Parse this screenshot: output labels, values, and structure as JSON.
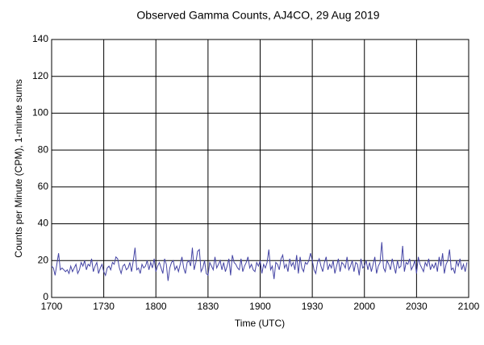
{
  "chart_data": {
    "type": "line",
    "title": "Observed Gamma Counts, AJ4CO, 29 Aug 2019",
    "xlabel": "Time (UTC)",
    "ylabel": "Counts per Minute (CPM), 1-minute sums",
    "color": "#4444a4",
    "grid": true,
    "xlim": [
      1020,
      1260
    ],
    "ylim": [
      0,
      140
    ],
    "xticks": [
      {
        "value": 1020,
        "label": "1700"
      },
      {
        "value": 1050,
        "label": "1730"
      },
      {
        "value": 1080,
        "label": "1800"
      },
      {
        "value": 1110,
        "label": "1830"
      },
      {
        "value": 1140,
        "label": "1900"
      },
      {
        "value": 1170,
        "label": "1930"
      },
      {
        "value": 1200,
        "label": "2000"
      },
      {
        "value": 1230,
        "label": "2030"
      },
      {
        "value": 1260,
        "label": "2100"
      }
    ],
    "yticks": [
      0,
      20,
      40,
      60,
      80,
      100,
      120,
      140
    ],
    "x": [
      1020,
      1021,
      1022,
      1023,
      1024,
      1025,
      1026,
      1027,
      1028,
      1029,
      1030,
      1031,
      1032,
      1033,
      1034,
      1035,
      1036,
      1037,
      1038,
      1039,
      1040,
      1041,
      1042,
      1043,
      1044,
      1045,
      1046,
      1047,
      1048,
      1049,
      1050,
      1051,
      1052,
      1053,
      1054,
      1055,
      1056,
      1057,
      1058,
      1059,
      1060,
      1061,
      1062,
      1063,
      1064,
      1065,
      1066,
      1067,
      1068,
      1069,
      1070,
      1071,
      1072,
      1073,
      1074,
      1075,
      1076,
      1077,
      1078,
      1079,
      1080,
      1081,
      1082,
      1083,
      1084,
      1085,
      1086,
      1087,
      1088,
      1089,
      1090,
      1091,
      1092,
      1093,
      1094,
      1095,
      1096,
      1097,
      1098,
      1099,
      1100,
      1101,
      1102,
      1103,
      1104,
      1105,
      1106,
      1107,
      1108,
      1109,
      1110,
      1111,
      1112,
      1113,
      1114,
      1115,
      1116,
      1117,
      1118,
      1119,
      1120,
      1121,
      1122,
      1123,
      1124,
      1125,
      1126,
      1127,
      1128,
      1129,
      1130,
      1131,
      1132,
      1133,
      1134,
      1135,
      1136,
      1137,
      1138,
      1139,
      1140,
      1141,
      1142,
      1143,
      1144,
      1145,
      1146,
      1147,
      1148,
      1149,
      1150,
      1151,
      1152,
      1153,
      1154,
      1155,
      1156,
      1157,
      1158,
      1159,
      1160,
      1161,
      1162,
      1163,
      1164,
      1165,
      1166,
      1167,
      1168,
      1169,
      1170,
      1171,
      1172,
      1173,
      1174,
      1175,
      1176,
      1177,
      1178,
      1179,
      1180,
      1181,
      1182,
      1183,
      1184,
      1185,
      1186,
      1187,
      1188,
      1189,
      1190,
      1191,
      1192,
      1193,
      1194,
      1195,
      1196,
      1197,
      1198,
      1199,
      1200,
      1201,
      1202,
      1203,
      1204,
      1205,
      1206,
      1207,
      1208,
      1209,
      1210,
      1211,
      1212,
      1213,
      1214,
      1215,
      1216,
      1217,
      1218,
      1219,
      1220,
      1221,
      1222,
      1223,
      1224,
      1225,
      1226,
      1227,
      1228,
      1229,
      1230,
      1231,
      1232,
      1233,
      1234,
      1235,
      1236,
      1237,
      1238,
      1239,
      1240,
      1241,
      1242,
      1243,
      1244,
      1245,
      1246,
      1247,
      1248,
      1249,
      1250,
      1251,
      1252,
      1253,
      1254,
      1255,
      1256,
      1257,
      1258,
      1259
    ],
    "values": [
      17,
      16,
      12,
      18,
      24,
      15,
      16,
      15,
      14,
      15,
      13,
      17,
      14,
      16,
      18,
      13,
      15,
      19,
      17,
      20,
      15,
      18,
      17,
      21,
      14,
      17,
      19,
      13,
      16,
      18,
      14,
      12,
      16,
      17,
      15,
      19,
      18,
      22,
      21,
      16,
      13,
      17,
      18,
      15,
      16,
      19,
      14,
      20,
      27,
      15,
      16,
      13,
      18,
      16,
      17,
      20,
      15,
      19,
      16,
      21,
      14,
      17,
      19,
      16,
      13,
      21,
      18,
      9,
      16,
      19,
      20,
      15,
      17,
      14,
      18,
      22,
      16,
      13,
      19,
      20,
      17,
      27,
      15,
      19,
      25,
      26,
      14,
      16,
      20,
      13,
      12,
      19,
      17,
      15,
      22,
      16,
      18,
      20,
      15,
      19,
      14,
      17,
      21,
      12,
      23,
      19,
      18,
      16,
      15,
      21,
      14,
      17,
      19,
      22,
      16,
      18,
      15,
      14,
      19,
      17,
      20,
      13,
      18,
      16,
      19,
      26,
      15,
      17,
      10,
      19,
      18,
      15,
      21,
      23,
      16,
      18,
      14,
      21,
      17,
      19,
      15,
      23,
      13,
      22,
      16,
      14,
      19,
      18,
      20,
      24,
      20,
      15,
      13,
      19,
      21,
      17,
      14,
      19,
      22,
      15,
      18,
      16,
      20,
      13,
      17,
      21,
      14,
      19,
      18,
      16,
      22,
      15,
      17,
      20,
      14,
      19,
      18,
      12,
      21,
      16,
      17,
      20,
      15,
      19,
      14,
      18,
      22,
      13,
      17,
      19,
      30,
      16,
      14,
      20,
      18,
      15,
      21,
      17,
      13,
      20,
      16,
      17,
      28,
      14,
      19,
      18,
      21,
      15,
      17,
      20,
      13,
      22,
      18,
      16,
      14,
      19,
      17,
      21,
      15,
      18,
      16,
      19,
      14,
      22,
      17,
      24,
      13,
      18,
      20,
      26,
      15,
      16,
      13,
      20,
      17,
      21,
      15,
      18,
      14,
      19
    ]
  }
}
